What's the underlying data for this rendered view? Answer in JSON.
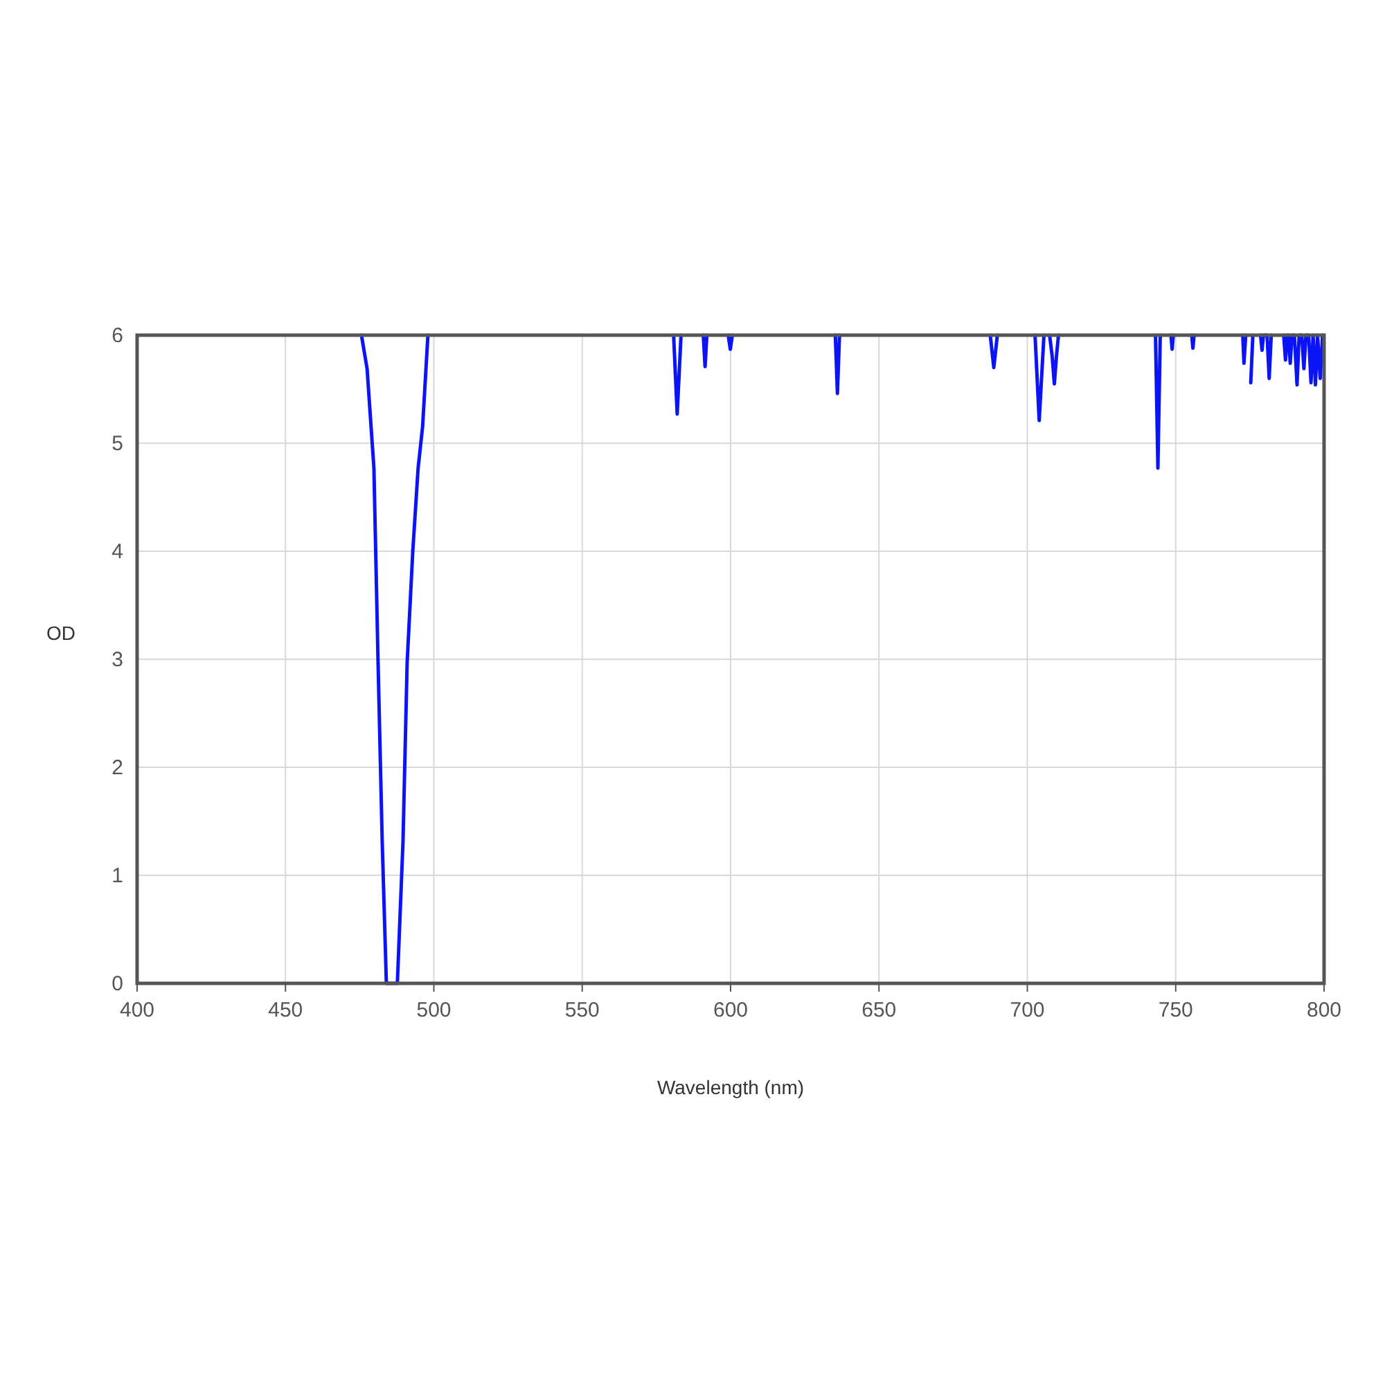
{
  "chart_data": {
    "type": "line",
    "xlabel": "Wavelength (nm)",
    "ylabel": "OD",
    "xlim": [
      400,
      800
    ],
    "ylim": [
      0,
      6
    ],
    "xticks": [
      400,
      450,
      500,
      550,
      600,
      650,
      700,
      750,
      800
    ],
    "yticks": [
      0,
      1,
      2,
      3,
      4,
      5,
      6
    ],
    "grid": true,
    "marker": "none",
    "line_style": "solid",
    "series": [
      {
        "color": "#0a14f5",
        "x": [
          475.6,
          477.5,
          479.8,
          481.2,
          482.6,
          484.0,
          487.7,
          489.6,
          491.0,
          492.9,
          494.7,
          496.2,
          498.0,
          499,
          580.8,
          582.0,
          583.3,
          584,
          590.8,
          591.4,
          592.0,
          593,
          599.2,
          599.9,
          600.6,
          601,
          635.3,
          636.0,
          636.7,
          637,
          687.5,
          688.7,
          689.9,
          690,
          702.6,
          704.0,
          705.6,
          706.5,
          707.5,
          708.4,
          709.1,
          709.8,
          710.5,
          711,
          743.2,
          744.0,
          744.8,
          745,
          748.4,
          748.8,
          749.2,
          750,
          755.4,
          755.8,
          756.2,
          757,
          772.6,
          773.0,
          773.6,
          774.5,
          775.3,
          776.0,
          776.5,
          778.6,
          779.1,
          779.6,
          780.8,
          781.5,
          782.2,
          783,
          786.4,
          787.0,
          787.6,
          788.0,
          788.6,
          789.2,
          790,
          790.9,
          791.6,
          792.5,
          793.2,
          793.9,
          794.8,
          795.6,
          796.3,
          797.1,
          797.8,
          798.7,
          799.5
        ],
        "values": [
          6,
          5.69,
          4.77,
          2.97,
          1.31,
          0,
          0,
          1.31,
          2.97,
          4.0,
          4.77,
          5.15,
          6,
          null,
          6,
          5.27,
          6,
          null,
          6,
          5.71,
          6,
          null,
          6,
          5.87,
          6,
          null,
          6,
          5.46,
          6,
          null,
          6,
          5.7,
          6,
          null,
          6,
          5.21,
          6,
          null,
          6,
          5.8,
          5.55,
          5.8,
          6,
          null,
          6,
          4.77,
          6,
          null,
          6,
          5.87,
          6,
          null,
          6,
          5.88,
          6,
          null,
          6,
          5.74,
          6,
          null,
          5.56,
          6,
          null,
          6,
          5.86,
          6,
          6,
          5.6,
          6,
          null,
          6,
          5.77,
          6,
          6,
          5.74,
          6,
          6,
          5.54,
          6,
          6,
          5.69,
          6,
          6,
          5.56,
          6,
          5.54,
          6,
          5.6,
          6
        ]
      }
    ]
  }
}
